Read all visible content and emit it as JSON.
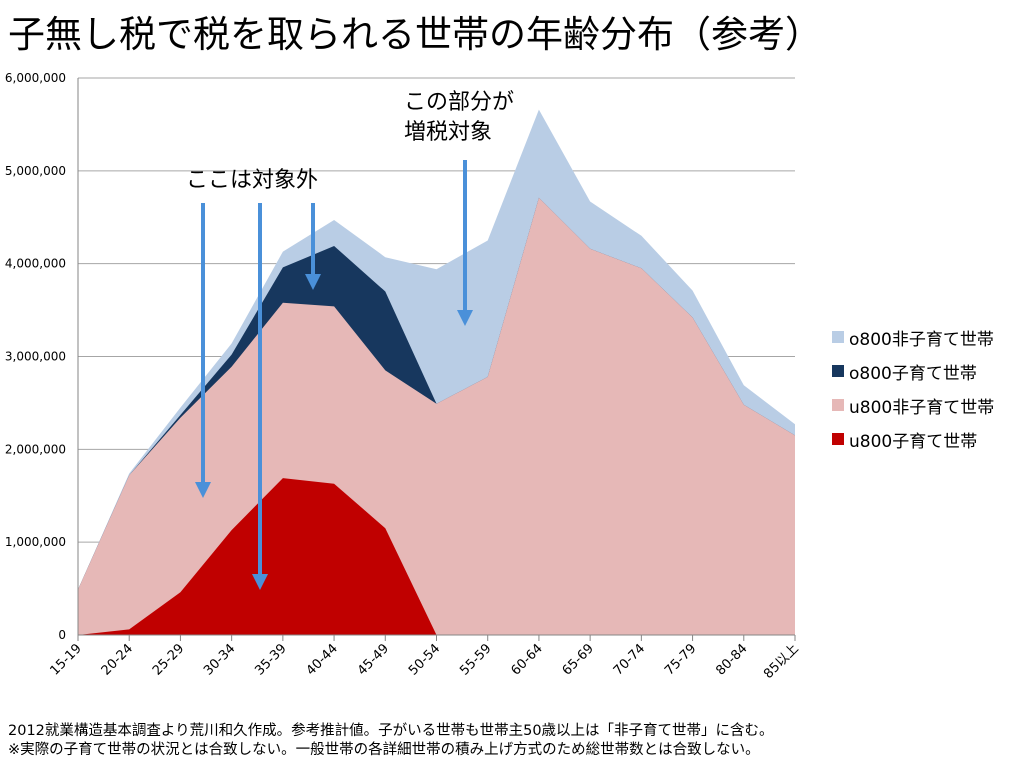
{
  "title": "子無し税で税を取られる世帯の年齢分布（参考）",
  "chart_data": {
    "type": "area",
    "stacked": true,
    "categories": [
      "15-19",
      "20-24",
      "25-29",
      "30-34",
      "35-39",
      "40-44",
      "45-49",
      "50-54",
      "55-59",
      "60-64",
      "65-69",
      "70-74",
      "75-79",
      "80-84",
      "85以上"
    ],
    "ylim": [
      0,
      6000000
    ],
    "yticks": [
      0,
      1000000,
      2000000,
      3000000,
      4000000,
      5000000,
      6000000
    ],
    "ytick_labels": [
      "0",
      "1,000,000",
      "2,000,000",
      "3,000,000",
      "4,000,000",
      "5,000,000",
      "6,000,000"
    ],
    "grid": true,
    "legend_position": "right",
    "series": [
      {
        "name": "u800子育て世帯",
        "color": "#c00000",
        "values": [
          0,
          60000,
          460000,
          1130000,
          1690000,
          1630000,
          1150000,
          0,
          0,
          0,
          0,
          0,
          0,
          0,
          0
        ]
      },
      {
        "name": "u800非子育て世帯",
        "color": "#e6b8b7",
        "values": [
          490000,
          1660000,
          1880000,
          1760000,
          1890000,
          1910000,
          1700000,
          2490000,
          2780000,
          4710000,
          4160000,
          3950000,
          3420000,
          2480000,
          2150000
        ]
      },
      {
        "name": "o800子育て世帯",
        "color": "#17375e",
        "values": [
          0,
          0,
          30000,
          130000,
          380000,
          650000,
          850000,
          0,
          0,
          0,
          0,
          0,
          0,
          0,
          0
        ]
      },
      {
        "name": "o800非子育て世帯",
        "color": "#b9cde5",
        "values": [
          0,
          20000,
          80000,
          120000,
          170000,
          280000,
          370000,
          1450000,
          1470000,
          950000,
          510000,
          350000,
          290000,
          210000,
          120000
        ]
      }
    ],
    "legend_order": [
      "o800非子育て世帯",
      "o800子育て世帯",
      "u800非子育て世帯",
      "u800子育て世帯"
    ]
  },
  "annotations": {
    "left_label": "ここは対象外",
    "right_label_line1": "この部分が",
    "right_label_line2": "増税対象",
    "arrow_color": "#4a90d9"
  },
  "footnote": {
    "line1": "2012就業構造基本調査より荒川和久作成。参考推計値。子がいる世帯も世帯主50歳以上は「非子育て世帯」に含む。",
    "line2": "※実際の子育て世帯の状況とは合致しない。一般世帯の各詳細世帯の積み上げ方式のため総世帯数とは合致しない。"
  }
}
